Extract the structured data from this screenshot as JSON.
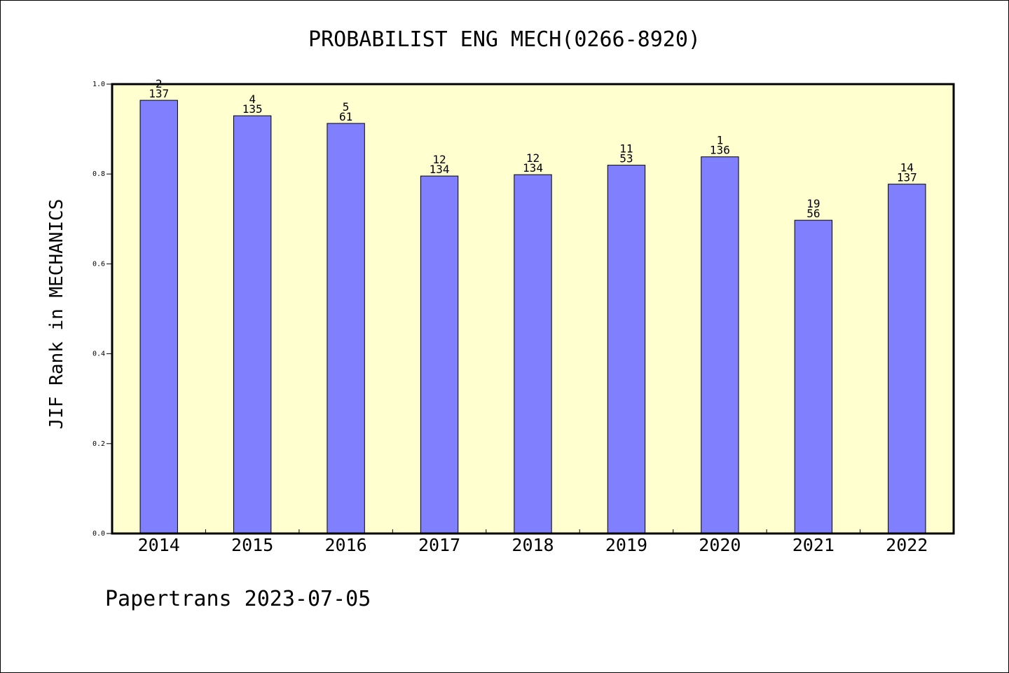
{
  "chart_data": {
    "type": "bar",
    "title": "PROBABILIST ENG MECH(0266-8920)",
    "ylabel": "JIF Rank in MECHANICS",
    "xlabel": "",
    "ylim": [
      0,
      1.0
    ],
    "yticks": [
      0.0,
      0.2,
      0.4,
      0.6,
      0.8,
      1.0
    ],
    "ytick_labels": [
      "0.0",
      "0.2",
      "0.4",
      "0.6",
      "0.8",
      "1.0"
    ],
    "categories": [
      "2014",
      "2015",
      "2016",
      "2017",
      "2018",
      "2019",
      "2020",
      "2021",
      "2022"
    ],
    "values": [
      0.964,
      0.9296,
      0.9126,
      0.7955,
      0.7985,
      0.8196,
      0.8382,
      0.6971,
      0.7774
    ],
    "rank_labels": [
      "2",
      "4",
      "5",
      "12",
      "12",
      "11",
      "1",
      "19",
      "14"
    ],
    "total_labels": [
      "137",
      "135",
      "61",
      "134",
      "134",
      "53",
      "136",
      "56",
      "137"
    ],
    "grid": false,
    "colors": {
      "bar_fill": "#8080ff",
      "bar_stroke": "#000000",
      "plot_bg": "#ffffd0",
      "frame": "#000000"
    }
  },
  "footer": "Papertrans 2023-07-05"
}
